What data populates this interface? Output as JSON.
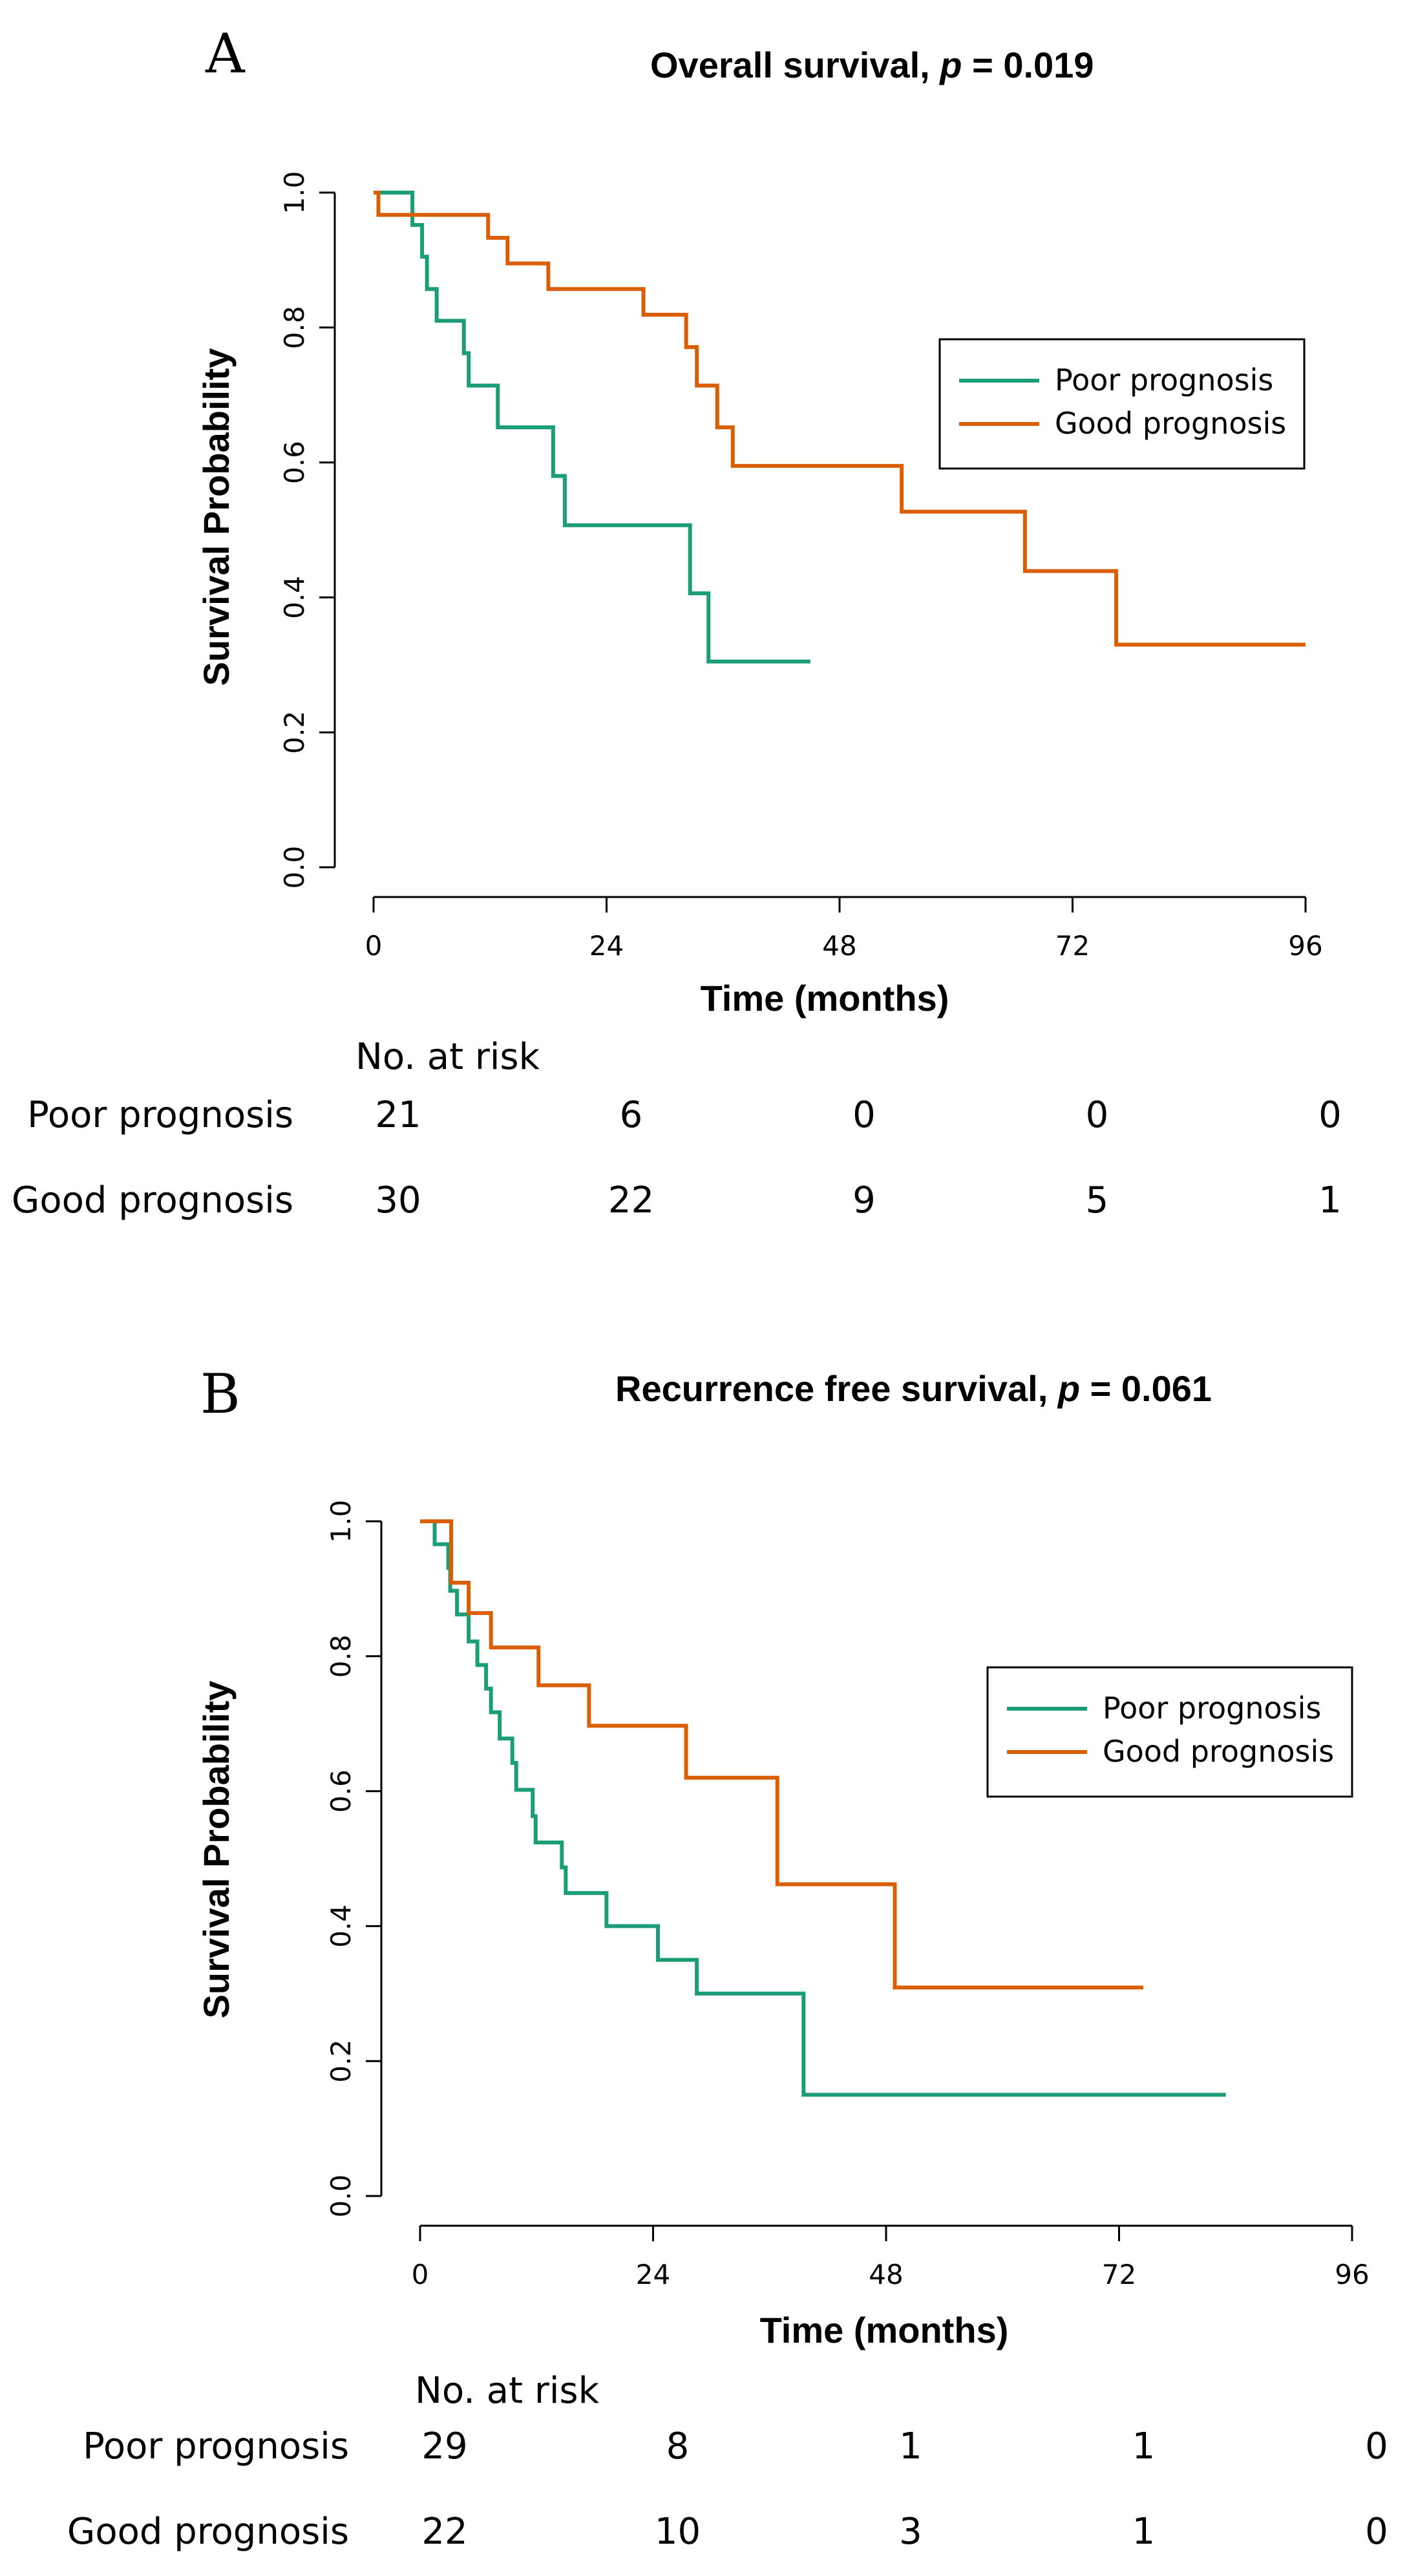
{
  "chart_data": [
    {
      "type": "line",
      "panel_letter": "A",
      "title": "Overall survival,",
      "title_p_label": "p",
      "title_p_value": "= 0.019",
      "xlabel": "Time (months)",
      "ylabel": "Survival Probability",
      "xlim": [
        0,
        96
      ],
      "ylim": [
        0,
        1
      ],
      "x_ticks": [
        0,
        24,
        48,
        72,
        96
      ],
      "x_tick_labels": [
        "0",
        "24",
        "48",
        "72",
        "96"
      ],
      "y_ticks": [
        0,
        0.2,
        0.4,
        0.6,
        0.8,
        1.0
      ],
      "y_tick_labels": [
        "0.0",
        "0.2",
        "0.4",
        "0.6",
        "0.8",
        "1.0"
      ],
      "legend_position": "top-right",
      "series": [
        {
          "name": "Poor prognosis",
          "color": "#1b9e77",
          "steps": [
            [
              0,
              1.0
            ],
            [
              4,
              0.952
            ],
            [
              5,
              0.905
            ],
            [
              5.5,
              0.857
            ],
            [
              6.5,
              0.81
            ],
            [
              9.3,
              0.762
            ],
            [
              9.8,
              0.714
            ],
            [
              12.8,
              0.652
            ],
            [
              18.5,
              0.58
            ],
            [
              19.7,
              0.507
            ],
            [
              32.6,
              0.406
            ],
            [
              34.5,
              0.305
            ],
            [
              45,
              0.305
            ]
          ]
        },
        {
          "name": "Good prognosis",
          "color": "#d95f02",
          "steps": [
            [
              0,
              1.0
            ],
            [
              0.5,
              0.967
            ],
            [
              11.8,
              0.933
            ],
            [
              13.8,
              0.895
            ],
            [
              18,
              0.857
            ],
            [
              27.8,
              0.819
            ],
            [
              32.2,
              0.771
            ],
            [
              33.3,
              0.714
            ],
            [
              35.4,
              0.652
            ],
            [
              37,
              0.595
            ],
            [
              54.4,
              0.527
            ],
            [
              67.1,
              0.439
            ],
            [
              76.5,
              0.33
            ],
            [
              96,
              0.33
            ]
          ]
        }
      ],
      "risk_table": {
        "header": "No. at risk",
        "rows": [
          {
            "label": "Poor prognosis",
            "values": [
              "21",
              "6",
              "0",
              "0",
              "0"
            ]
          },
          {
            "label": "Good prognosis",
            "values": [
              "30",
              "22",
              "9",
              "5",
              "1"
            ]
          }
        ]
      }
    },
    {
      "type": "line",
      "panel_letter": "B",
      "title": "Recurrence free survival,",
      "title_p_label": "p",
      "title_p_value": "= 0.061",
      "xlabel": "Time (months)",
      "ylabel": "Survival Probability",
      "xlim": [
        0,
        96
      ],
      "ylim": [
        0,
        1
      ],
      "x_ticks": [
        0,
        24,
        48,
        72,
        96
      ],
      "x_tick_labels": [
        "0",
        "24",
        "48",
        "72",
        "96"
      ],
      "y_ticks": [
        0,
        0.2,
        0.4,
        0.6,
        0.8,
        1.0
      ],
      "y_tick_labels": [
        "0.0",
        "0.2",
        "0.4",
        "0.6",
        "0.8",
        "1.0"
      ],
      "legend_position": "top-right",
      "series": [
        {
          "name": "Poor prognosis",
          "color": "#1b9e77",
          "steps": [
            [
              0,
              1.0
            ],
            [
              1.5,
              0.966
            ],
            [
              2.9,
              0.931
            ],
            [
              3.1,
              0.897
            ],
            [
              3.8,
              0.862
            ],
            [
              5,
              0.822
            ],
            [
              5.9,
              0.787
            ],
            [
              6.8,
              0.752
            ],
            [
              7.3,
              0.717
            ],
            [
              8.2,
              0.678
            ],
            [
              9.5,
              0.642
            ],
            [
              9.9,
              0.602
            ],
            [
              11.6,
              0.563
            ],
            [
              11.9,
              0.524
            ],
            [
              14.6,
              0.487
            ],
            [
              15.0,
              0.449
            ],
            [
              19.2,
              0.4
            ],
            [
              24.5,
              0.35
            ],
            [
              28.5,
              0.3
            ],
            [
              39.5,
              0.15
            ],
            [
              83,
              0.15
            ]
          ]
        },
        {
          "name": "Good prognosis",
          "color": "#d95f02",
          "steps": [
            [
              0,
              1.0
            ],
            [
              3.2,
              0.909
            ],
            [
              5,
              0.864
            ],
            [
              7.3,
              0.813
            ],
            [
              12.2,
              0.757
            ],
            [
              17.4,
              0.697
            ],
            [
              27.4,
              0.62
            ],
            [
              36.8,
              0.462
            ],
            [
              48.9,
              0.309
            ],
            [
              74.5,
              0.309
            ]
          ]
        }
      ],
      "risk_table": {
        "header": "No. at risk",
        "rows": [
          {
            "label": "Poor prognosis",
            "values": [
              "29",
              "8",
              "1",
              "1",
              "0"
            ]
          },
          {
            "label": "Good prognosis",
            "values": [
              "22",
              "10",
              "3",
              "1",
              "0"
            ]
          }
        ]
      }
    }
  ]
}
